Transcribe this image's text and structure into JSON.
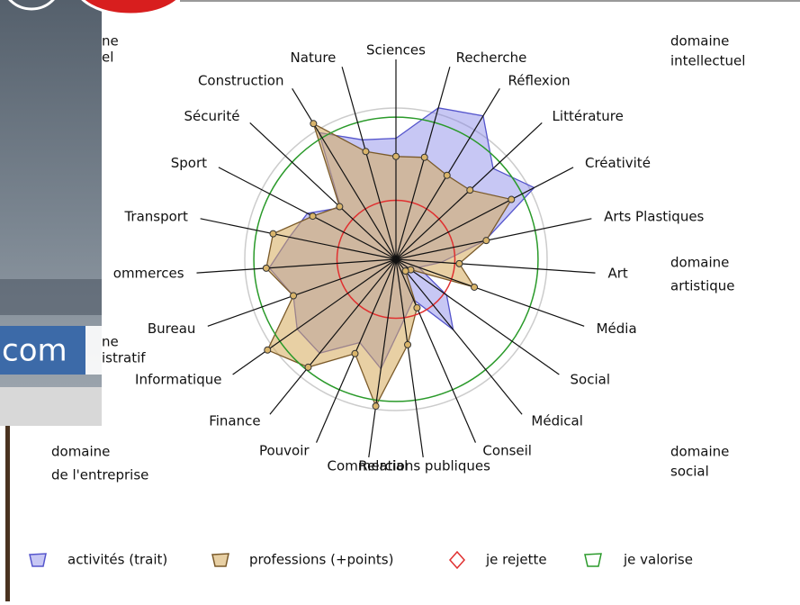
{
  "chart_data": {
    "type": "radar",
    "categories": [
      "Sciences",
      "Recherche",
      "Réflexion",
      "Littérature",
      "Créativité",
      "Arts Plastiques",
      "Art",
      "Média",
      "Social",
      "Médical",
      "Conseil",
      "Relations publiques",
      "Commercial",
      "Pouvoir",
      "Finance",
      "Informatique",
      "Bureau",
      "ommerces",
      "Transport",
      "Sport",
      "Sécurité",
      "Construction",
      "Nature"
    ],
    "rlim": [
      0,
      100
    ],
    "series": [
      {
        "name": "activités (trait)",
        "color": "#5555cc",
        "fill": "rgba(130,130,230,0.45)",
        "values": [
          80,
          104,
          111,
          88,
          103,
          60,
          30,
          16,
          41,
          60,
          29,
          40,
          73,
          60,
          80,
          80,
          72,
          84,
          72,
          66,
          50,
          98,
          82
        ]
      },
      {
        "name": "professions (+points)",
        "color": "#7a5a2a",
        "fill": "rgba(214,170,90,0.55)",
        "values": [
          68,
          70,
          65,
          67,
          86,
          61,
          42,
          55,
          12,
          10,
          35,
          57,
          98,
          68,
          92,
          104,
          72,
          86,
          83,
          62,
          51,
          105,
          74
        ],
        "markers": true
      },
      {
        "name": "je rejette",
        "color": "#e03030",
        "level": 39
      },
      {
        "name": "je valorise",
        "color": "#2a9a2a",
        "level": 94
      }
    ],
    "annotations": [
      [
        "domaine",
        "intellectuel"
      ],
      [
        "domaine",
        "artistique"
      ],
      [
        "domaine",
        "social"
      ],
      [
        "domaine",
        "de l'entreprise"
      ],
      [
        "ne",
        "istratif"
      ],
      [
        "ne",
        "el"
      ]
    ]
  },
  "overlay": {
    "text": "com"
  }
}
